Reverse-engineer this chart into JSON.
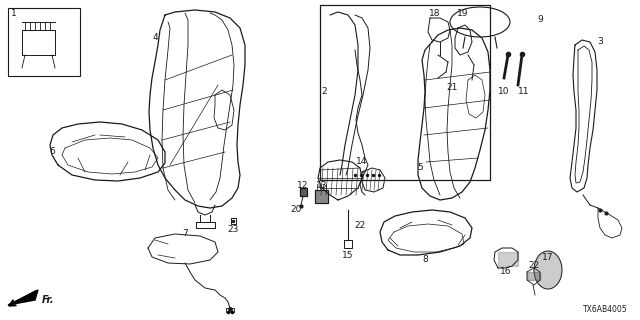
{
  "bg_color": "#ffffff",
  "line_color": "#1a1a1a",
  "diagram_code": "TX6AB4005",
  "label_fontsize": 6.5,
  "figsize": [
    6.4,
    3.2
  ],
  "dpi": 100
}
